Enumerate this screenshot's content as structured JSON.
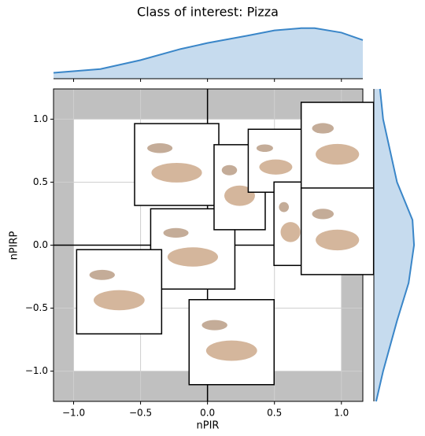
{
  "chart_data": {
    "type": "scatter",
    "title": "Class of interest: Pizza",
    "x_label": "nPIR",
    "y_label": "nPIRP",
    "x": [
      -0.23,
      -0.11,
      0.24,
      0.51,
      0.62,
      0.97,
      0.97,
      -0.66,
      0.18
    ],
    "values": [
      0.64,
      -0.03,
      0.46,
      0.67,
      0.17,
      0.79,
      0.11,
      -0.37,
      -0.77
    ],
    "xlim": [
      -1.15,
      1.16
    ],
    "ylim": [
      -1.24,
      1.24
    ],
    "xticks": [
      {
        "value": -1,
        "label": "−1.0"
      },
      {
        "value": -0.5,
        "label": "−0.5"
      },
      {
        "value": 0,
        "label": "0.0"
      },
      0.5,
      {
        "value": 1,
        "label": "1.0"
      }
    ],
    "yticks": [
      {
        "value": -1,
        "label": "−1.0"
      },
      {
        "value": -0.5,
        "label": "−0.5"
      },
      {
        "value": 0,
        "label": "0.0"
      },
      0.5,
      {
        "value": 1,
        "label": "1.0"
      }
    ],
    "grid": true,
    "kde_color": "#3a86c8",
    "kde_fill": "#c6dbee",
    "band_color": "#c0c0c0",
    "top_kde": {
      "x": [
        -1.15,
        -0.8,
        -0.5,
        -0.2,
        0,
        0.3,
        0.5,
        0.7,
        0.8,
        1.0,
        1.16
      ],
      "values": [
        8,
        13,
        25,
        40,
        48,
        58,
        65,
        68,
        68,
        62,
        52
      ],
      "lim": [
        0,
        72
      ]
    },
    "right_kde": {
      "y": [
        -1.24,
        -1.0,
        -0.6,
        -0.3,
        0,
        0.2,
        0.5,
        1.0,
        1.24
      ],
      "values": [
        3,
        12,
        30,
        45,
        52,
        50,
        30,
        12,
        8
      ],
      "lim": [
        0,
        56
      ]
    }
  }
}
